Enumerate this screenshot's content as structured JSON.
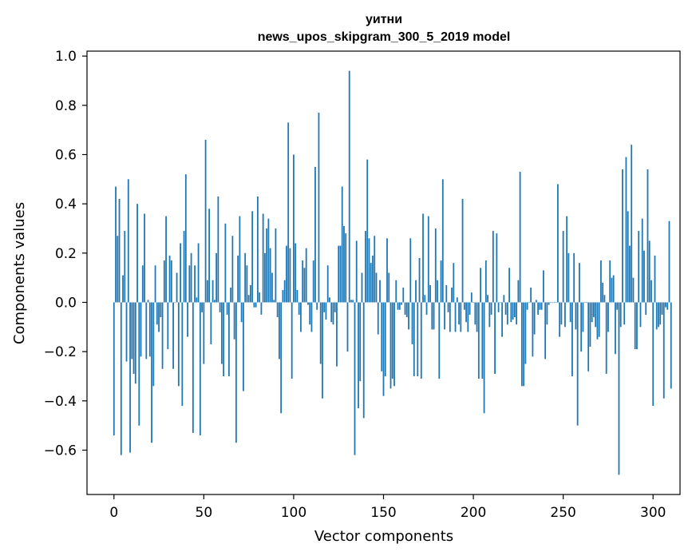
{
  "chart_data": {
    "type": "bar",
    "title_line1": "уитни",
    "title_line2": "news_upos_skipgram_300_5_2019 model",
    "xlabel": "Vector components",
    "ylabel": "Components values",
    "xlim": [
      -15,
      315
    ],
    "ylim": [
      -0.78,
      1.02
    ],
    "x_ticks": [
      0,
      50,
      100,
      150,
      200,
      250,
      300
    ],
    "x_tick_labels": [
      "0",
      "50",
      "100",
      "150",
      "200",
      "250",
      "300"
    ],
    "y_ticks": [
      -0.6,
      -0.4,
      -0.2,
      0.0,
      0.2,
      0.4,
      0.6,
      0.8,
      1.0
    ],
    "y_tick_labels": [
      "−0.6",
      "−0.4",
      "−0.2",
      "0.0",
      "0.2",
      "0.4",
      "0.6",
      "0.8",
      "1.0"
    ],
    "bar_color": "#1f77b4",
    "values": [
      -0.54,
      0.47,
      0.27,
      0.42,
      -0.62,
      0.11,
      0.29,
      -0.24,
      0.5,
      -0.61,
      -0.23,
      -0.29,
      -0.33,
      0.4,
      -0.5,
      -0.22,
      0.15,
      0.36,
      -0.23,
      0.01,
      -0.22,
      -0.57,
      -0.34,
      0.15,
      -0.09,
      -0.12,
      -0.06,
      -0.27,
      0.17,
      0.35,
      -0.19,
      0.19,
      0.17,
      -0.27,
      0.0,
      0.12,
      -0.34,
      0.24,
      -0.42,
      0.29,
      0.52,
      -0.14,
      0.15,
      0.2,
      -0.53,
      0.15,
      0.02,
      0.24,
      -0.54,
      -0.04,
      -0.25,
      0.66,
      0.09,
      0.38,
      -0.17,
      0.09,
      0.01,
      0.2,
      0.43,
      -0.04,
      -0.25,
      -0.3,
      0.32,
      -0.05,
      -0.3,
      0.06,
      0.27,
      -0.15,
      -0.57,
      0.19,
      0.35,
      -0.08,
      -0.36,
      0.2,
      0.15,
      0.03,
      0.07,
      0.37,
      -0.02,
      -0.02,
      0.43,
      0.04,
      -0.05,
      0.36,
      0.2,
      0.3,
      0.34,
      0.22,
      0.12,
      0.01,
      0.3,
      -0.06,
      -0.23,
      -0.45,
      0.05,
      0.09,
      0.23,
      0.73,
      0.22,
      -0.31,
      0.6,
      0.24,
      0.05,
      -0.05,
      -0.12,
      0.17,
      0.14,
      0.22,
      -0.01,
      -0.09,
      -0.12,
      0.17,
      0.55,
      -0.03,
      0.77,
      -0.25,
      -0.39,
      -0.04,
      -0.07,
      0.15,
      0.02,
      -0.08,
      -0.09,
      -0.04,
      -0.26,
      0.23,
      0.23,
      0.47,
      0.31,
      0.28,
      -0.2,
      0.94,
      0.01,
      0.01,
      -0.62,
      0.25,
      -0.43,
      -0.32,
      0.12,
      -0.47,
      0.29,
      0.58,
      0.26,
      0.16,
      0.19,
      0.27,
      0.12,
      -0.13,
      0.09,
      -0.28,
      -0.38,
      -0.3,
      0.26,
      0.12,
      -0.35,
      -0.31,
      -0.34,
      0.09,
      -0.03,
      -0.03,
      -0.01,
      0.06,
      -0.05,
      -0.06,
      -0.11,
      0.26,
      -0.17,
      -0.3,
      0.09,
      -0.3,
      0.18,
      -0.31,
      0.36,
      0.03,
      -0.05,
      0.35,
      0.07,
      -0.11,
      -0.11,
      0.3,
      0.09,
      -0.31,
      0.17,
      0.5,
      -0.11,
      0.07,
      -0.04,
      -0.12,
      0.06,
      0.16,
      -0.12,
      0.02,
      -0.09,
      -0.12,
      0.42,
      -0.03,
      -0.08,
      -0.12,
      -0.05,
      0.04,
      0.0,
      -0.09,
      -0.12,
      -0.31,
      0.14,
      -0.31,
      -0.45,
      0.17,
      0.03,
      -0.1,
      -0.05,
      0.29,
      -0.29,
      0.28,
      -0.04,
      0.0,
      -0.14,
      0.03,
      -0.05,
      -0.09,
      0.14,
      -0.08,
      -0.07,
      -0.06,
      -0.09,
      0.09,
      0.53,
      -0.34,
      -0.34,
      -0.25,
      -0.03,
      0.0,
      0.06,
      -0.22,
      -0.13,
      0.01,
      -0.05,
      -0.03,
      -0.03,
      0.13,
      -0.23,
      -0.09,
      -0.01,
      0.0,
      0.0,
      0.0,
      0.0,
      0.48,
      -0.14,
      -0.09,
      0.29,
      -0.1,
      0.35,
      0.2,
      -0.08,
      -0.3,
      0.2,
      -0.11,
      -0.5,
      0.16,
      -0.2,
      -0.12,
      0.0,
      0.0,
      -0.28,
      -0.18,
      -0.08,
      -0.06,
      -0.1,
      -0.15,
      -0.14,
      0.17,
      0.08,
      0.03,
      -0.29,
      -0.12,
      0.17,
      0.1,
      0.11,
      -0.21,
      -0.03,
      -0.7,
      -0.1,
      0.54,
      -0.09,
      0.59,
      0.37,
      0.23,
      0.64,
      0.1,
      -0.19,
      -0.19,
      0.29,
      -0.1,
      0.34,
      0.21,
      -0.05,
      0.54,
      0.25,
      0.09,
      -0.42,
      0.19,
      -0.11,
      -0.1,
      -0.09,
      -0.05,
      -0.39,
      -0.02,
      -0.03,
      0.33,
      -0.35
    ]
  }
}
